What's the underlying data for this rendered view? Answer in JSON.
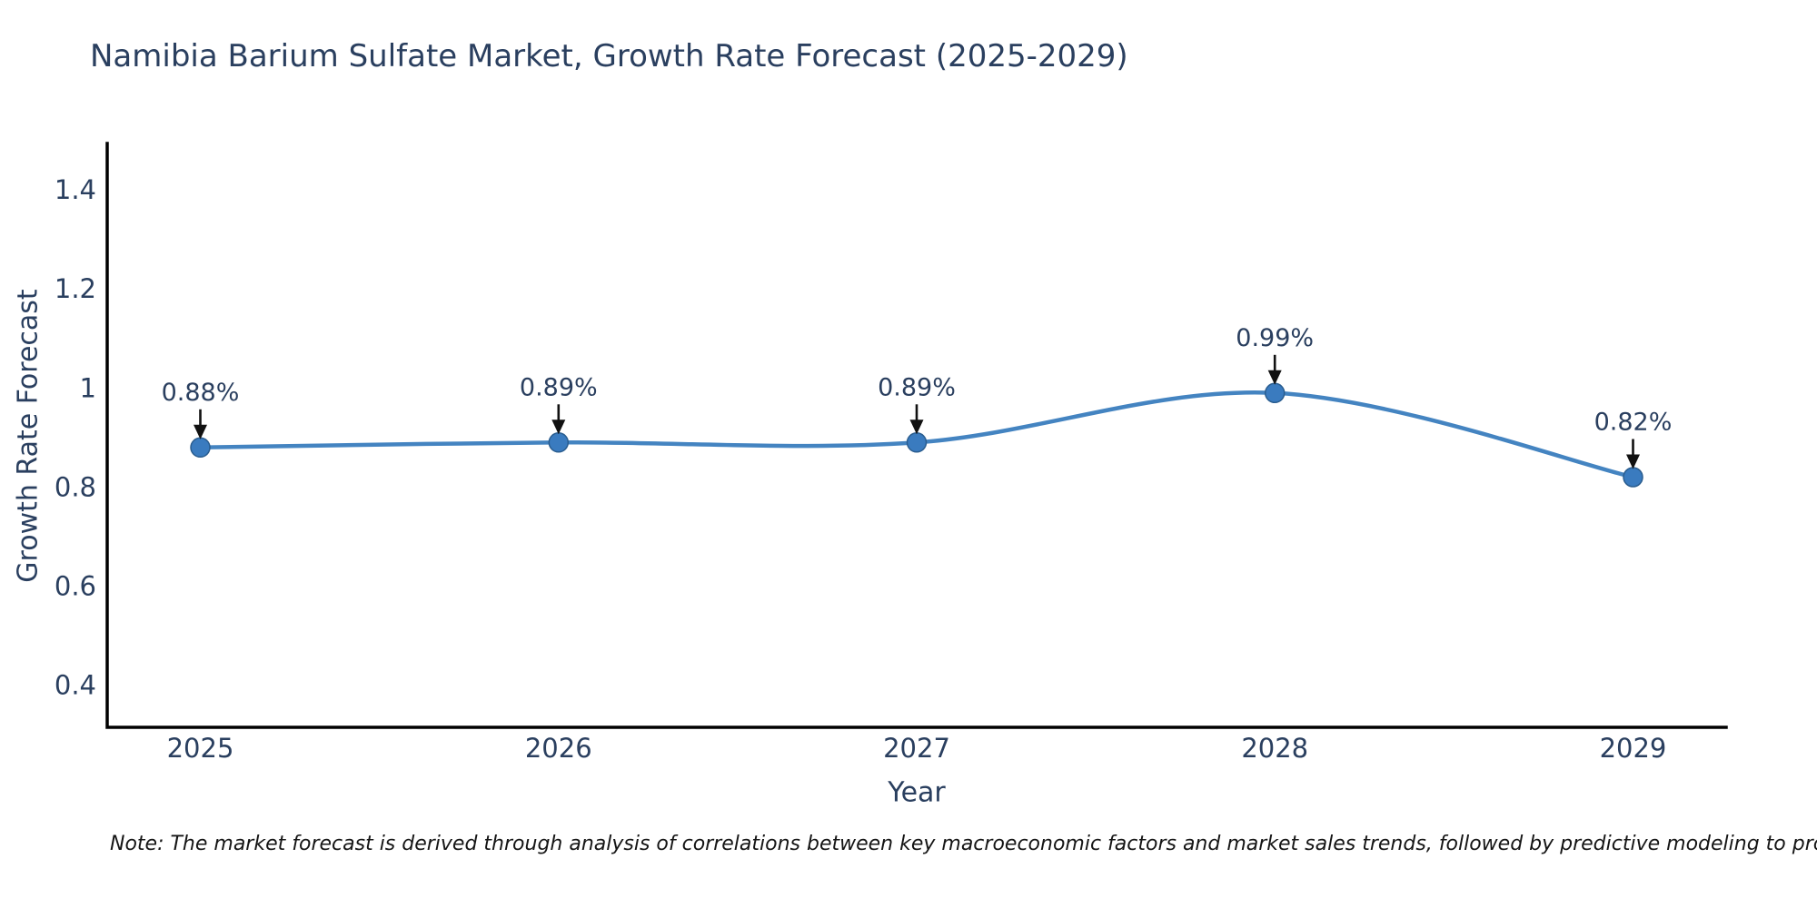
{
  "title": "Namibia Barium Sulfate Market, Growth Rate Forecast (2025-2029)",
  "note": "Note: The market forecast is derived through analysis of correlations between key macroeconomic factors and market sales trends, followed by predictive modeling to project future sales",
  "colors": {
    "background": "#ffffff",
    "text": "#2a3f5f",
    "axis_line": "#000000",
    "series_line": "#4484c1",
    "marker_fill": "#3a7bbf",
    "marker_edge": "#2a5d8f",
    "annotation_arrow": "#111111",
    "note_text": "#151515"
  },
  "chart_data": {
    "type": "line",
    "title": "Namibia Barium Sulfate Market, Growth Rate Forecast (2025-2029)",
    "xlabel": "Year",
    "ylabel": "Growth Rate Forecast",
    "x": [
      2025,
      2026,
      2027,
      2028,
      2029
    ],
    "values": [
      0.88,
      0.89,
      0.89,
      0.99,
      0.82
    ],
    "point_labels": [
      "0.88%",
      "0.89%",
      "0.89%",
      "0.99%",
      "0.82%"
    ],
    "xtick_labels": [
      "2025",
      "2026",
      "2027",
      "2028",
      "2029"
    ],
    "yticks": [
      0.4,
      0.6,
      0.8,
      1.0,
      1.2,
      1.4
    ],
    "ytick_labels": [
      "0.4",
      "0.6",
      "0.8",
      "1",
      "1.2",
      "1.4"
    ],
    "xlim": [
      2024.74,
      2029.26
    ],
    "ylim": [
      0.315,
      1.49
    ],
    "grid": false,
    "legend": "none",
    "line_shape": "spline",
    "markers": true,
    "annotations": "value labels with down arrows above each point"
  }
}
